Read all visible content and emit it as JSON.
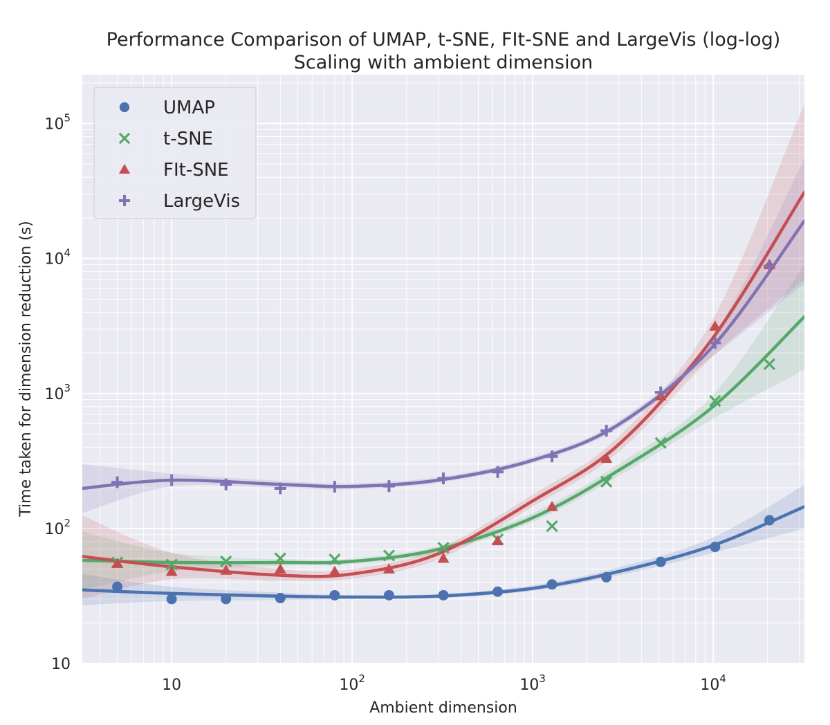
{
  "chart_data": {
    "type": "scatter",
    "title_lines": [
      "Performance Comparison of UMAP, t-SNE, FIt-SNE and LargeVis (log-log)",
      "Scaling with ambient dimension"
    ],
    "xlabel": "Ambient dimension",
    "ylabel": "Time taken for dimension reduction (s)",
    "xscale": "log",
    "yscale": "log",
    "xlim": [
      3.2,
      32000
    ],
    "ylim": [
      10,
      230000
    ],
    "x_ticks": [
      {
        "value": 10,
        "base": "10",
        "exp": ""
      },
      {
        "value": 100,
        "base": "10",
        "exp": "2"
      },
      {
        "value": 1000,
        "base": "10",
        "exp": "3"
      },
      {
        "value": 10000,
        "base": "10",
        "exp": "4"
      }
    ],
    "y_ticks": [
      {
        "value": 10,
        "base": "10",
        "exp": ""
      },
      {
        "value": 100,
        "base": "10",
        "exp": "2"
      },
      {
        "value": 1000,
        "base": "10",
        "exp": "3"
      },
      {
        "value": 10000,
        "base": "10",
        "exp": "4"
      },
      {
        "value": 100000,
        "base": "10",
        "exp": "5"
      }
    ],
    "grid": true,
    "legend_position": "top-left",
    "series": [
      {
        "name": "UMAP",
        "marker": "circle",
        "color": "#4c72b0",
        "x": [
          5,
          10,
          20,
          40,
          80,
          160,
          320,
          640,
          1280,
          2560,
          5120,
          10240,
          20480
        ],
        "y": [
          37,
          30,
          30,
          30.5,
          32,
          32,
          32,
          34,
          38.5,
          43.5,
          56.5,
          73,
          115
        ],
        "fit_x": [
          3.2,
          10,
          40,
          100,
          300,
          1000,
          3000,
          10000,
          32000
        ],
        "fit_y": [
          35,
          33,
          31.5,
          31,
          31.5,
          36,
          48,
          75,
          145
        ],
        "band_lower": [
          27,
          29,
          29.5,
          30,
          30.5,
          34.5,
          45,
          66,
          100
        ],
        "band_upper": [
          46,
          37,
          33.5,
          32.2,
          32.7,
          37.8,
          51.5,
          86,
          210
        ]
      },
      {
        "name": "t-SNE",
        "marker": "x",
        "color": "#55a868",
        "x": [
          5,
          10,
          20,
          40,
          80,
          160,
          320,
          640,
          1280,
          2560,
          5120,
          10240,
          20480
        ],
        "y": [
          56,
          54,
          57,
          60,
          59,
          63,
          72,
          83,
          104,
          222,
          430,
          880,
          1650
        ],
        "fit_x": [
          3.2,
          10,
          40,
          100,
          300,
          1000,
          3000,
          10000,
          32000
        ],
        "fit_y": [
          58,
          56,
          56,
          57,
          70,
          120,
          270,
          800,
          3700
        ],
        "band_lower": [
          35,
          48,
          53,
          54.5,
          66,
          112,
          245,
          650,
          1500
        ],
        "band_upper": [
          95,
          66,
          59.5,
          60,
          74,
          130,
          300,
          980,
          9000
        ]
      },
      {
        "name": "FIt-SNE",
        "marker": "triangle",
        "color": "#c44e52",
        "x": [
          5,
          10,
          20,
          40,
          80,
          160,
          320,
          640,
          1280,
          2560,
          5120,
          10240,
          20480
        ],
        "y": [
          55,
          48,
          49,
          50,
          48,
          50,
          60,
          81,
          145,
          330,
          960,
          3150,
          9000
        ],
        "fit_x": [
          3.2,
          10,
          40,
          100,
          300,
          1000,
          3000,
          10000,
          32000
        ],
        "fit_y": [
          62,
          52,
          45,
          46,
          65,
          160,
          420,
          2600,
          31000
        ],
        "band_lower": [
          30,
          42,
          41,
          42.5,
          59,
          145,
          370,
          1900,
          7000
        ],
        "band_upper": [
          125,
          66,
          50,
          50,
          71,
          178,
          480,
          3600,
          140000
        ]
      },
      {
        "name": "LargeVis",
        "marker": "plus",
        "color": "#8172b2",
        "x": [
          5,
          10,
          20,
          40,
          80,
          160,
          320,
          640,
          1280,
          2560,
          5120,
          10240,
          20480
        ],
        "y": [
          220,
          228,
          212,
          198,
          204,
          206,
          235,
          262,
          342,
          530,
          1020,
          2370,
          8800
        ],
        "fit_x": [
          3.2,
          10,
          40,
          100,
          300,
          1000,
          3000,
          10000,
          32000
        ],
        "fit_y": [
          198,
          228,
          212,
          205,
          228,
          320,
          590,
          2250,
          19000
        ],
        "band_lower": [
          130,
          205,
          200,
          195,
          218,
          305,
          555,
          1900,
          6500
        ],
        "band_upper": [
          300,
          255,
          225,
          216,
          240,
          338,
          630,
          2700,
          55000
        ]
      }
    ]
  }
}
